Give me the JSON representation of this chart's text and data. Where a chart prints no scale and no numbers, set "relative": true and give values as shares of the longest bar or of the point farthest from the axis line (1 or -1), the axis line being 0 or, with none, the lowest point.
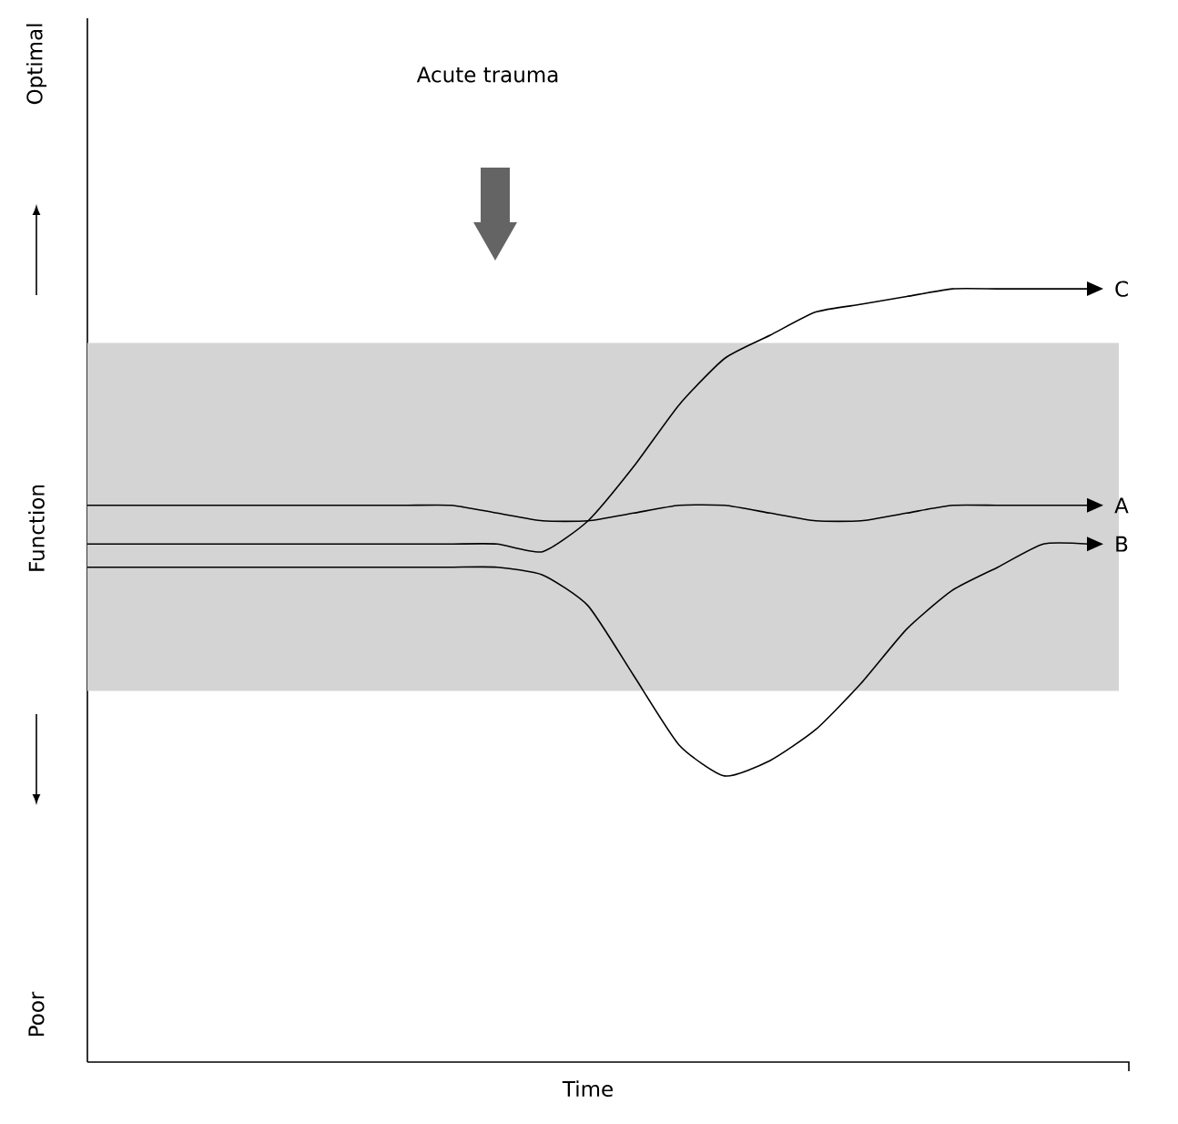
{
  "chart_data": {
    "type": "line",
    "relative": true,
    "xlabel": "Time",
    "ylabel": "Function",
    "annotations": [
      "Acute trauma",
      "Poor",
      "Optimal"
    ],
    "categories": [
      null,
      null,
      null,
      null,
      null,
      null,
      null,
      null,
      null,
      null,
      null,
      null,
      null,
      null,
      null,
      null,
      null,
      null,
      null,
      null,
      null,
      null,
      null
    ],
    "series": [
      {
        "name": "A",
        "color": "#000000",
        "values": [
          0.72,
          0.72,
          0.72,
          0.72,
          0.72,
          0.72,
          0.72,
          0.72,
          0.72,
          0.71,
          0.7,
          0.7,
          0.71,
          0.72,
          0.72,
          0.71,
          0.7,
          0.7,
          0.71,
          0.72,
          0.72,
          0.72,
          0.72
        ]
      },
      {
        "name": "B",
        "color": "#000000",
        "values": [
          0.64,
          0.64,
          0.64,
          0.64,
          0.64,
          0.64,
          0.64,
          0.64,
          0.64,
          0.64,
          0.63,
          0.59,
          0.5,
          0.41,
          0.37,
          0.39,
          0.43,
          0.49,
          0.56,
          0.61,
          0.64,
          0.67,
          0.67
        ]
      },
      {
        "name": "C",
        "color": "#000000",
        "values": [
          0.67,
          0.67,
          0.67,
          0.67,
          0.67,
          0.67,
          0.67,
          0.67,
          0.67,
          0.67,
          0.66,
          0.7,
          0.77,
          0.85,
          0.91,
          0.94,
          0.97,
          0.98,
          0.99,
          1.0,
          1.0,
          1.0,
          1.0
        ]
      }
    ],
    "bands": [
      {
        "axis": "y",
        "from": 0.48,
        "to": 0.93,
        "color": "#d4d4d4"
      }
    ],
    "marker": "none",
    "line_style": "solid",
    "legend": false
  }
}
